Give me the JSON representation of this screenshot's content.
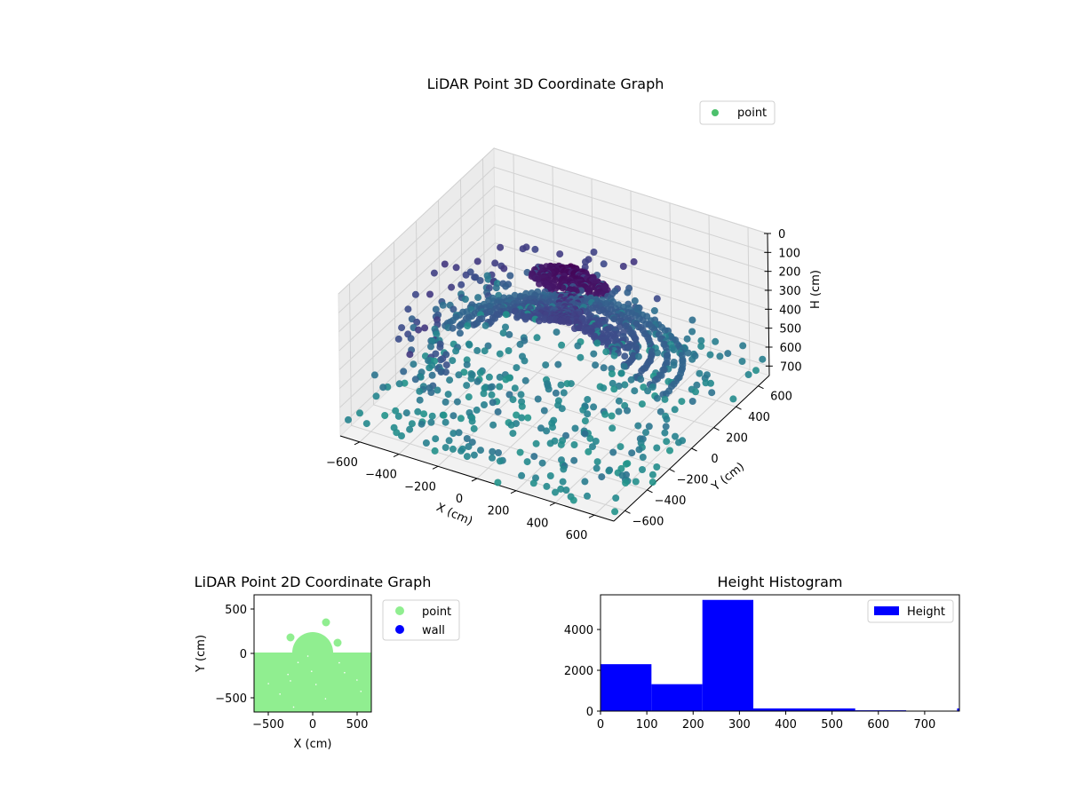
{
  "chart_data": [
    {
      "type": "scatter",
      "projection": "3d",
      "title": "LiDAR Point 3D Coordinate Graph",
      "xlabel": "X (cm)",
      "ylabel": "Y (cm)",
      "zlabel": "H (cm)",
      "xlim": [
        -700,
        700
      ],
      "ylim": [
        -700,
        700
      ],
      "zlim": [
        0,
        750
      ],
      "z_inverted": true,
      "xticks": [
        "−600",
        "−400",
        "−200",
        "0",
        "200",
        "400",
        "600"
      ],
      "yticks": [
        "−600",
        "−400",
        "−200",
        "0",
        "200",
        "400",
        "600"
      ],
      "zticks": [
        "0",
        "100",
        "200",
        "300",
        "400",
        "500",
        "600",
        "700"
      ],
      "legend": [
        {
          "label": "point",
          "color": "#4cc06c"
        }
      ],
      "legend_placement": "top-right",
      "colormap": "viridis",
      "grid": true,
      "series": [
        {
          "name": "point",
          "description_values": {
            "dome_center": [
              0,
              150,
              150
            ],
            "dome_radius": 190,
            "arc_rings_radius": [
              350,
              420,
              490,
              560
            ],
            "floor_height_range": [
              550,
              750
            ]
          }
        }
      ]
    },
    {
      "type": "scatter",
      "title": "LiDAR Point 2D Coordinate Graph",
      "xlabel": "X (cm)",
      "ylabel": "Y (cm)",
      "xlim": [
        -660,
        660
      ],
      "ylim": [
        -660,
        660
      ],
      "xticks": [
        "−500",
        "0",
        "500"
      ],
      "yticks": [
        "500",
        "0",
        "−500"
      ],
      "legend_placement": "right-outside",
      "series": [
        {
          "name": "point",
          "color": "#90ee90",
          "points": [
            [
              -250,
              180
            ],
            [
              150,
              350
            ],
            [
              280,
              120
            ]
          ],
          "fill_region": {
            "x": [
              -660,
              660
            ],
            "y": [
              -660,
              10
            ],
            "dome_center": [
              0,
              10
            ],
            "dome_radius": 230
          }
        },
        {
          "name": "wall",
          "color": "#0000ff",
          "points": []
        }
      ]
    },
    {
      "type": "bar",
      "title": "Height Histogram",
      "xlabel": "",
      "ylabel": "",
      "xlim": [
        0,
        775
      ],
      "ylim": [
        0,
        5700
      ],
      "xticks": [
        "0",
        "100",
        "200",
        "300",
        "400",
        "500",
        "600",
        "700"
      ],
      "yticks": [
        "0",
        "2000",
        "4000"
      ],
      "legend": [
        {
          "label": "Height",
          "color": "#0000ff"
        }
      ],
      "legend_placement": "top-right",
      "bins": [
        {
          "start": 0,
          "end": 110,
          "count": 2300
        },
        {
          "start": 110,
          "end": 220,
          "count": 1320
        },
        {
          "start": 220,
          "end": 330,
          "count": 5450
        },
        {
          "start": 330,
          "end": 550,
          "count": 130
        },
        {
          "start": 550,
          "end": 660,
          "count": 40
        },
        {
          "start": 660,
          "end": 770,
          "count": 10
        },
        {
          "start": 770,
          "end": 775,
          "count": 130
        }
      ]
    }
  ]
}
